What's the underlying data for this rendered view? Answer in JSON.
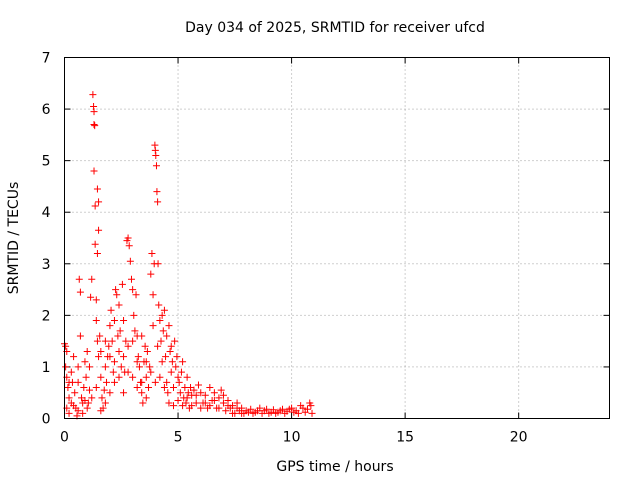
{
  "chart_data": {
    "type": "scatter",
    "title": "Day 034 of 2025, SRMTID for receiver ufcd",
    "xlabel": "GPS time / hours",
    "ylabel": "SRMTID / TECUs",
    "xlim": [
      0,
      24
    ],
    "ylim": [
      0,
      7
    ],
    "xticks": [
      0,
      5,
      10,
      15,
      20
    ],
    "yticks": [
      0,
      1,
      2,
      3,
      4,
      5,
      6,
      7
    ],
    "grid": true,
    "marker": "+",
    "color": "#ff0000",
    "series": [
      {
        "name": "SRMTID",
        "points": [
          [
            0.0,
            1.45
          ],
          [
            0.05,
            1.4
          ],
          [
            0.1,
            1.3
          ],
          [
            0.05,
            1.0
          ],
          [
            0.1,
            0.8
          ],
          [
            0.15,
            0.6
          ],
          [
            0.2,
            0.4
          ],
          [
            0.1,
            0.2
          ],
          [
            0.2,
            0.1
          ],
          [
            0.3,
            0.3
          ],
          [
            0.35,
            0.7
          ],
          [
            0.4,
            1.2
          ],
          [
            0.45,
            0.5
          ],
          [
            0.5,
            0.2
          ],
          [
            0.55,
            0.05
          ],
          [
            0.6,
            1.0
          ],
          [
            0.65,
            2.7
          ],
          [
            0.7,
            2.45
          ],
          [
            0.7,
            1.6
          ],
          [
            0.75,
            0.4
          ],
          [
            0.8,
            0.1
          ],
          [
            0.85,
            0.6
          ],
          [
            0.9,
            0.35
          ],
          [
            0.95,
            0.8
          ],
          [
            1.0,
            1.3
          ],
          [
            1.05,
            0.3
          ],
          [
            1.1,
            0.55
          ],
          [
            1.15,
            2.35
          ],
          [
            1.2,
            2.7
          ],
          [
            1.25,
            6.28
          ],
          [
            1.28,
            6.05
          ],
          [
            1.3,
            5.95
          ],
          [
            1.3,
            5.7
          ],
          [
            1.33,
            5.68
          ],
          [
            1.3,
            4.8
          ],
          [
            1.35,
            4.12
          ],
          [
            1.4,
            2.3
          ],
          [
            1.45,
            4.45
          ],
          [
            1.5,
            4.2
          ],
          [
            1.5,
            3.65
          ],
          [
            1.45,
            3.2
          ],
          [
            1.35,
            3.38
          ],
          [
            1.4,
            1.9
          ],
          [
            1.45,
            1.5
          ],
          [
            1.5,
            1.2
          ],
          [
            1.55,
            1.6
          ],
          [
            1.6,
            0.8
          ],
          [
            1.65,
            0.4
          ],
          [
            1.7,
            0.2
          ],
          [
            1.75,
            0.55
          ],
          [
            1.8,
            1.0
          ],
          [
            1.85,
            0.7
          ],
          [
            1.9,
            1.2
          ],
          [
            1.95,
            1.4
          ],
          [
            2.0,
            1.8
          ],
          [
            2.05,
            2.1
          ],
          [
            2.1,
            1.5
          ],
          [
            2.15,
            0.9
          ],
          [
            2.2,
            1.1
          ],
          [
            2.25,
            2.5
          ],
          [
            2.3,
            2.4
          ],
          [
            2.35,
            1.6
          ],
          [
            2.4,
            2.2
          ],
          [
            2.45,
            1.7
          ],
          [
            2.5,
            1.0
          ],
          [
            2.55,
            2.6
          ],
          [
            2.6,
            1.2
          ],
          [
            2.65,
            0.9
          ],
          [
            2.7,
            1.5
          ],
          [
            2.75,
            3.45
          ],
          [
            2.8,
            3.5
          ],
          [
            2.85,
            3.35
          ],
          [
            2.9,
            3.05
          ],
          [
            2.95,
            2.7
          ],
          [
            3.0,
            2.5
          ],
          [
            3.05,
            2.0
          ],
          [
            3.1,
            1.7
          ],
          [
            3.15,
            2.4
          ],
          [
            3.2,
            1.6
          ],
          [
            3.25,
            1.2
          ],
          [
            3.3,
            1.0
          ],
          [
            3.35,
            0.7
          ],
          [
            3.4,
            0.5
          ],
          [
            3.45,
            0.3
          ],
          [
            3.5,
            1.1
          ],
          [
            3.55,
            1.4
          ],
          [
            3.6,
            0.8
          ],
          [
            3.65,
            1.3
          ],
          [
            3.7,
            0.6
          ],
          [
            3.75,
            1.0
          ],
          [
            3.8,
            2.8
          ],
          [
            3.85,
            3.2
          ],
          [
            3.9,
            2.4
          ],
          [
            3.95,
            3.0
          ],
          [
            3.98,
            5.3
          ],
          [
            4.0,
            5.2
          ],
          [
            4.02,
            5.1
          ],
          [
            4.05,
            4.9
          ],
          [
            4.07,
            4.4
          ],
          [
            4.1,
            4.2
          ],
          [
            4.12,
            3.0
          ],
          [
            4.15,
            2.2
          ],
          [
            4.2,
            1.9
          ],
          [
            4.25,
            1.5
          ],
          [
            4.3,
            2.0
          ],
          [
            4.35,
            1.7
          ],
          [
            4.4,
            2.1
          ],
          [
            4.45,
            1.2
          ],
          [
            4.5,
            0.7
          ],
          [
            4.55,
            0.5
          ],
          [
            4.6,
            1.8
          ],
          [
            4.65,
            1.3
          ],
          [
            4.7,
            0.9
          ],
          [
            4.75,
            1.1
          ],
          [
            4.8,
            0.6
          ],
          [
            4.85,
            1.5
          ],
          [
            4.9,
            1.0
          ],
          [
            4.95,
            1.2
          ],
          [
            5.0,
            0.8
          ],
          [
            5.05,
            0.7
          ],
          [
            5.1,
            0.5
          ],
          [
            5.15,
            0.9
          ],
          [
            5.2,
            1.1
          ],
          [
            5.25,
            0.4
          ],
          [
            5.3,
            0.6
          ],
          [
            5.35,
            0.3
          ],
          [
            5.4,
            0.8
          ],
          [
            5.45,
            0.5
          ],
          [
            5.5,
            0.2
          ],
          [
            5.55,
            0.6
          ],
          [
            5.6,
            0.45
          ],
          [
            5.7,
            0.55
          ],
          [
            5.8,
            0.3
          ],
          [
            5.9,
            0.65
          ],
          [
            6.0,
            0.5
          ],
          [
            6.1,
            0.3
          ],
          [
            6.2,
            0.45
          ],
          [
            6.3,
            0.2
          ],
          [
            6.4,
            0.6
          ],
          [
            6.5,
            0.35
          ],
          [
            6.6,
            0.5
          ],
          [
            6.7,
            0.2
          ],
          [
            6.8,
            0.4
          ],
          [
            6.9,
            0.55
          ],
          [
            7.0,
            0.3
          ],
          [
            7.1,
            0.15
          ],
          [
            7.2,
            0.35
          ],
          [
            7.3,
            0.2
          ],
          [
            7.4,
            0.25
          ],
          [
            7.5,
            0.1
          ],
          [
            7.6,
            0.3
          ],
          [
            7.7,
            0.15
          ],
          [
            7.8,
            0.2
          ],
          [
            7.9,
            0.1
          ],
          [
            8.0,
            0.15
          ],
          [
            8.2,
            0.18
          ],
          [
            8.4,
            0.12
          ],
          [
            8.6,
            0.2
          ],
          [
            8.8,
            0.15
          ],
          [
            9.0,
            0.1
          ],
          [
            9.2,
            0.17
          ],
          [
            9.4,
            0.12
          ],
          [
            9.6,
            0.18
          ],
          [
            9.8,
            0.14
          ],
          [
            10.0,
            0.2
          ],
          [
            10.2,
            0.15
          ],
          [
            10.4,
            0.25
          ],
          [
            10.6,
            0.12
          ],
          [
            10.8,
            0.3
          ],
          [
            10.9,
            0.1
          ],
          [
            0.3,
            0.9
          ],
          [
            0.6,
            0.7
          ],
          [
            0.9,
            1.1
          ],
          [
            1.1,
            1.0
          ],
          [
            1.6,
            1.3
          ],
          [
            1.8,
            1.5
          ],
          [
            2.0,
            1.2
          ],
          [
            2.2,
            1.9
          ],
          [
            2.4,
            1.3
          ],
          [
            2.6,
            1.9
          ],
          [
            2.8,
            1.4
          ],
          [
            3.0,
            1.5
          ],
          [
            3.2,
            1.1
          ],
          [
            3.4,
            1.6
          ],
          [
            3.6,
            1.1
          ],
          [
            3.9,
            1.8
          ],
          [
            4.1,
            1.4
          ],
          [
            4.3,
            1.1
          ],
          [
            4.5,
            1.6
          ],
          [
            4.7,
            1.4
          ],
          [
            0.2,
            0.7
          ],
          [
            0.4,
            0.25
          ],
          [
            0.6,
            0.15
          ],
          [
            0.8,
            0.3
          ],
          [
            1.0,
            0.2
          ],
          [
            1.2,
            0.4
          ],
          [
            1.4,
            0.6
          ],
          [
            1.6,
            0.15
          ],
          [
            1.8,
            0.3
          ],
          [
            2.0,
            0.5
          ],
          [
            2.2,
            0.7
          ],
          [
            2.4,
            0.8
          ],
          [
            2.6,
            0.5
          ],
          [
            2.8,
            0.9
          ],
          [
            3.0,
            0.8
          ],
          [
            3.2,
            0.6
          ],
          [
            3.4,
            0.7
          ],
          [
            3.6,
            0.4
          ],
          [
            3.8,
            0.9
          ],
          [
            4.0,
            0.7
          ],
          [
            4.2,
            0.8
          ],
          [
            4.4,
            0.6
          ],
          [
            4.6,
            0.3
          ],
          [
            4.8,
            0.25
          ],
          [
            5.0,
            0.35
          ],
          [
            5.2,
            0.25
          ],
          [
            5.4,
            0.4
          ],
          [
            5.6,
            0.25
          ],
          [
            5.8,
            0.45
          ],
          [
            6.0,
            0.2
          ],
          [
            6.2,
            0.3
          ],
          [
            6.4,
            0.25
          ],
          [
            6.6,
            0.35
          ],
          [
            6.8,
            0.2
          ],
          [
            7.0,
            0.45
          ],
          [
            7.2,
            0.25
          ],
          [
            7.4,
            0.1
          ],
          [
            7.6,
            0.2
          ],
          [
            7.8,
            0.1
          ],
          [
            8.1,
            0.12
          ],
          [
            8.3,
            0.1
          ],
          [
            8.5,
            0.15
          ],
          [
            8.7,
            0.1
          ],
          [
            8.9,
            0.18
          ],
          [
            9.1,
            0.12
          ],
          [
            9.3,
            0.1
          ],
          [
            9.5,
            0.15
          ],
          [
            9.7,
            0.1
          ],
          [
            9.9,
            0.18
          ],
          [
            10.1,
            0.12
          ],
          [
            10.3,
            0.1
          ],
          [
            10.5,
            0.2
          ],
          [
            10.7,
            0.18
          ],
          [
            10.85,
            0.25
          ]
        ]
      }
    ]
  }
}
